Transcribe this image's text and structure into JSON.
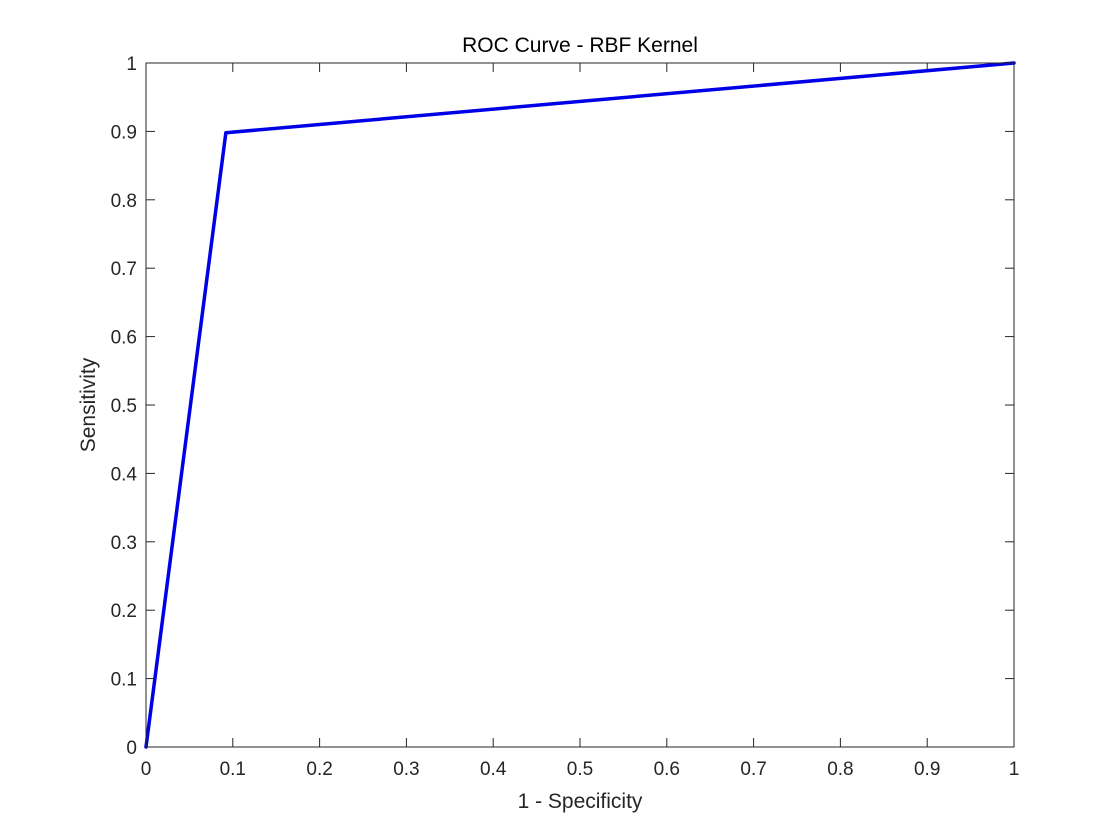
{
  "chart_data": {
    "type": "line",
    "title": "ROC Curve - RBF Kernel",
    "xlabel": "1 - Specificity",
    "ylabel": "Sensitivity",
    "xlim": [
      0,
      1
    ],
    "ylim": [
      0,
      1
    ],
    "xticks": [
      "0",
      "0.1",
      "0.2",
      "0.3",
      "0.4",
      "0.5",
      "0.6",
      "0.7",
      "0.8",
      "0.9",
      "1"
    ],
    "yticks": [
      "0",
      "0.1",
      "0.2",
      "0.3",
      "0.4",
      "0.5",
      "0.6",
      "0.7",
      "0.8",
      "0.9",
      "1"
    ],
    "grid": false,
    "legend": "none",
    "series": [
      {
        "color": "#0000e6",
        "x": [
          0,
          0.092,
          1
        ],
        "y": [
          0,
          0.898,
          1
        ]
      }
    ]
  }
}
